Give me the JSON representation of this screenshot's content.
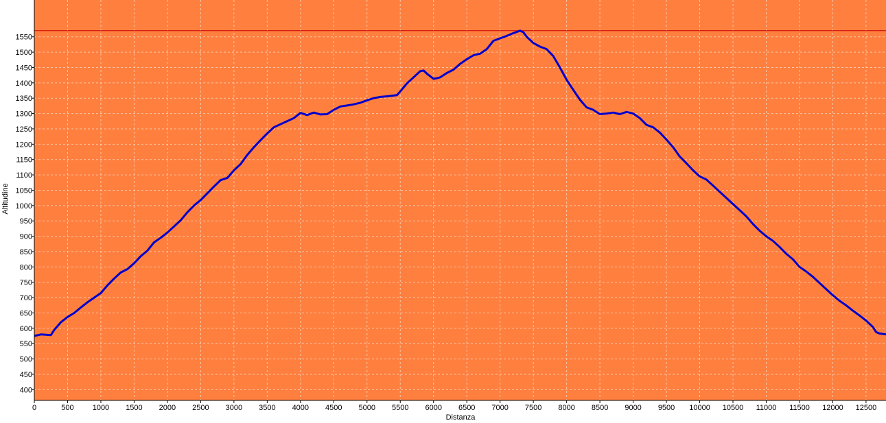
{
  "chart_data": {
    "type": "line",
    "title": "",
    "xlabel": "Distanza",
    "ylabel": "Altitudine",
    "xlim": [
      0,
      12800
    ],
    "ylim": [
      365,
      1670
    ],
    "x_ticks": [
      0,
      500,
      1000,
      1500,
      2000,
      2500,
      3000,
      3500,
      4000,
      4500,
      5000,
      5500,
      6000,
      6500,
      7000,
      7500,
      8000,
      8500,
      9000,
      9500,
      10000,
      10500,
      11000,
      11500,
      12000,
      12500
    ],
    "y_ticks": [
      400,
      450,
      500,
      550,
      600,
      650,
      700,
      750,
      800,
      850,
      900,
      950,
      1000,
      1050,
      1100,
      1150,
      1200,
      1250,
      1300,
      1350,
      1400,
      1450,
      1500,
      1550
    ],
    "grid": true,
    "max_line": 1570,
    "colors": {
      "plot_background": "#FF7F3F",
      "line": "#0000CC",
      "max_line": "#CC0000",
      "grid": "#F5C8A8"
    },
    "series": [
      {
        "name": "",
        "x": [
          0,
          100,
          250,
          300,
          400,
          500,
          600,
          700,
          800,
          900,
          1000,
          1100,
          1200,
          1300,
          1400,
          1500,
          1600,
          1700,
          1800,
          1900,
          2000,
          2100,
          2200,
          2300,
          2400,
          2500,
          2600,
          2700,
          2800,
          2900,
          3000,
          3100,
          3200,
          3300,
          3400,
          3500,
          3600,
          3700,
          3800,
          3900,
          4000,
          4100,
          4200,
          4300,
          4400,
          4500,
          4600,
          4700,
          4800,
          4900,
          5000,
          5100,
          5200,
          5300,
          5450,
          5500,
          5600,
          5700,
          5800,
          5850,
          5900,
          6000,
          6050,
          6100,
          6200,
          6300,
          6400,
          6500,
          6600,
          6700,
          6800,
          6900,
          7000,
          7100,
          7200,
          7300,
          7350,
          7400,
          7500,
          7600,
          7700,
          7800,
          7900,
          8000,
          8100,
          8200,
          8300,
          8400,
          8500,
          8600,
          8700,
          8800,
          8900,
          9000,
          9100,
          9200,
          9300,
          9400,
          9500,
          9600,
          9700,
          9800,
          9900,
          10000,
          10100,
          10200,
          10300,
          10400,
          10500,
          10600,
          10700,
          10800,
          10900,
          11000,
          11100,
          11200,
          11300,
          11400,
          11500,
          11600,
          11700,
          11800,
          11900,
          12000,
          12100,
          12200,
          12300,
          12400,
          12500,
          12600,
          12650,
          12700,
          12800
        ],
        "y": [
          575,
          580,
          578,
          595,
          620,
          637,
          650,
          668,
          685,
          700,
          715,
          740,
          762,
          782,
          793,
          812,
          835,
          853,
          880,
          895,
          912,
          932,
          952,
          978,
          1000,
          1018,
          1040,
          1062,
          1083,
          1090,
          1115,
          1135,
          1165,
          1190,
          1213,
          1235,
          1255,
          1265,
          1275,
          1285,
          1302,
          1295,
          1303,
          1297,
          1298,
          1312,
          1323,
          1326,
          1330,
          1335,
          1343,
          1350,
          1354,
          1356,
          1360,
          1372,
          1398,
          1418,
          1438,
          1440,
          1430,
          1413,
          1415,
          1418,
          1432,
          1443,
          1462,
          1477,
          1490,
          1495,
          1510,
          1537,
          1545,
          1553,
          1562,
          1570,
          1565,
          1550,
          1530,
          1518,
          1510,
          1487,
          1450,
          1410,
          1377,
          1345,
          1320,
          1312,
          1298,
          1300,
          1303,
          1298,
          1305,
          1300,
          1285,
          1263,
          1255,
          1238,
          1215,
          1190,
          1160,
          1138,
          1115,
          1095,
          1085,
          1065,
          1045,
          1025,
          1005,
          985,
          965,
          940,
          918,
          900,
          885,
          865,
          843,
          825,
          800,
          785,
          768,
          748,
          728,
          708,
          690,
          675,
          658,
          642,
          625,
          605,
          588,
          583,
          580
        ]
      }
    ]
  }
}
